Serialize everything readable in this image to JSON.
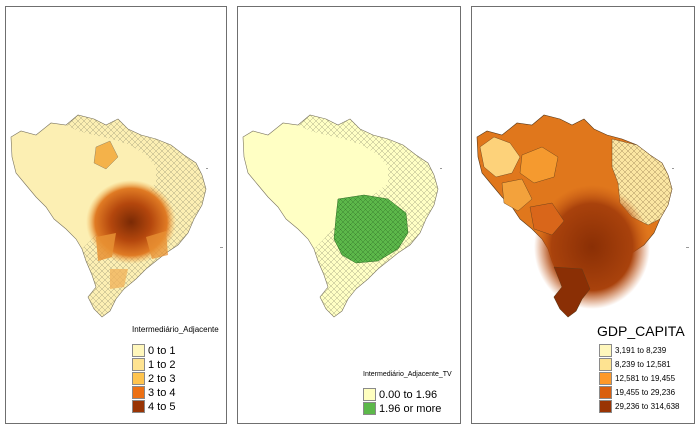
{
  "panels": [
    {
      "legend": {
        "title": "Intermediário_Adjacente",
        "items": [
          {
            "label": "0 to 1",
            "color": "#fff7bc"
          },
          {
            "label": "1 to 2",
            "color": "#fee391"
          },
          {
            "label": "2 to 3",
            "color": "#fec44f"
          },
          {
            "label": "3 to 4",
            "color": "#ec7014"
          },
          {
            "label": "4 to 5",
            "color": "#993404"
          }
        ]
      }
    },
    {
      "legend": {
        "title": "Intermediário_Adjacente_TV",
        "items": [
          {
            "label": "0.00 to 1.96",
            "color": "#ffffbf"
          },
          {
            "label": "1.96 or more",
            "color": "#5cb84a"
          }
        ]
      }
    },
    {
      "legend": {
        "title": "GDP_CAPITA",
        "items": [
          {
            "label": "3,191 to 8,239",
            "color": "#fff7bc"
          },
          {
            "label": "8,239 to 12,581",
            "color": "#fee391"
          },
          {
            "label": "12,581 to 19,455",
            "color": "#fe9929"
          },
          {
            "label": "19,455 to 29,236",
            "color": "#d95f0e"
          },
          {
            "label": "29,236 to 314,638",
            "color": "#993404"
          }
        ]
      }
    }
  ]
}
